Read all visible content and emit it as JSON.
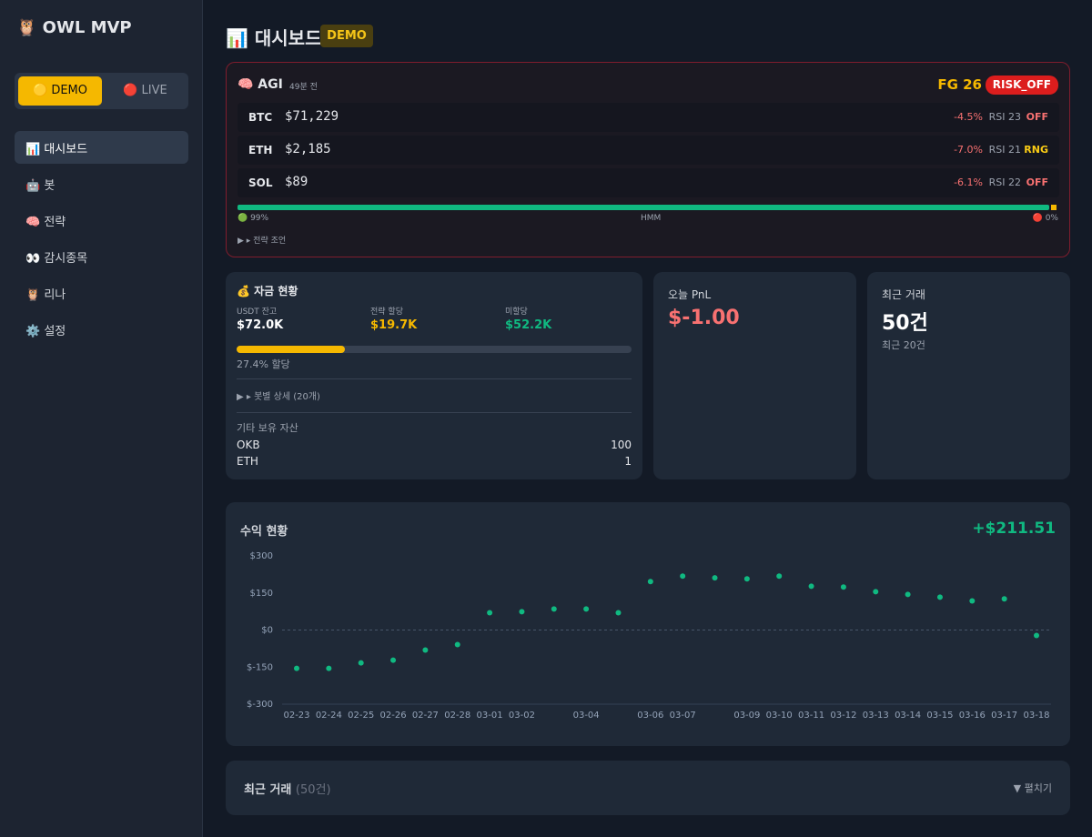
{
  "sidebar": {
    "logo": "🦉 OWL MVP",
    "modes": [
      "🟡 DEMO",
      "🔴 LIVE"
    ],
    "nav": [
      "📊 대시보드",
      "🤖 봇",
      "🧠 전략",
      "👀 감시종목",
      "🦉 리나",
      "⚙️ 설정"
    ]
  },
  "header": {
    "title": "📊 대시보드",
    "badge": "DEMO"
  },
  "agi": {
    "title": "🧠 AGI",
    "updated": "49분 전",
    "fear_greed": "FG 26",
    "regime": "RISK_OFF",
    "assets": [
      {
        "symbol": "BTC",
        "price": "$71,229",
        "change": "-4.5%",
        "rsi": "RSI 23",
        "state": "OFF",
        "state_color": "#f87171"
      },
      {
        "symbol": "ETH",
        "price": "$2,185",
        "change": "-7.0%",
        "rsi": "RSI 21",
        "state": "RNG",
        "state_color": "#facc15"
      },
      {
        "symbol": "SOL",
        "price": "$89",
        "change": "-6.1%",
        "rsi": "RSI 22",
        "state": "OFF",
        "state_color": "#f87171"
      }
    ],
    "hmm": {
      "bull": "🟢 99%",
      "label": "HMM",
      "bear": "🔴 0%"
    },
    "advice": "▸ 전략 조언"
  },
  "funds": {
    "title": "💰 자금 현황",
    "stats": [
      {
        "label": "USDT 잔고",
        "value": "$72.0K"
      },
      {
        "label": "전략 할당",
        "value": "$19.7K"
      },
      {
        "label": "미할당",
        "value": "$52.2K"
      }
    ],
    "allocation": {
      "value": 27.4,
      "label": "27.4% 할당"
    },
    "bot_details": "▸ 봇별 상세 (20개)",
    "other_title": "기타 보유 자산",
    "other_assets": [
      [
        "OKB",
        "100"
      ],
      [
        "ETH",
        "1"
      ]
    ]
  },
  "pnl": {
    "title": "오늘 PnL",
    "value": "$-1.00"
  },
  "trades": {
    "title": "최근 거래",
    "value": "50건",
    "note": "최근 20건"
  },
  "chart_data": {
    "type": "scatter",
    "title": "수익 현황",
    "annotation": "+$211.51",
    "color": "#10b981",
    "categories": [
      "02-23",
      "02-24",
      "02-25",
      "02-26",
      "02-27",
      "02-28",
      "03-01",
      "03-02",
      null,
      "03-04",
      null,
      "03-06",
      "03-07",
      null,
      "03-09",
      "03-10",
      "03-11",
      "03-12",
      "03-13",
      "03-14",
      "03-15",
      "03-16",
      "03-17",
      "03-18"
    ],
    "values": [
      -155,
      -155,
      -133,
      -122,
      -81,
      -59,
      70,
      74,
      85,
      85,
      70,
      196,
      218,
      211,
      207,
      218,
      177,
      174,
      155,
      144,
      133,
      118,
      126,
      -22
    ],
    "ylim": [
      -300,
      300
    ],
    "yticks": [
      {
        "value": -300,
        "label": "$-300"
      },
      {
        "value": -150,
        "label": "$-150"
      },
      {
        "value": 0,
        "label": "$0"
      },
      {
        "value": 150,
        "label": "$150"
      },
      {
        "value": 300,
        "label": "$300"
      }
    ],
    "zero_line": true
  },
  "recent_trades": {
    "title": "최근 거래",
    "count": "(50건)",
    "toggle": "▼ 펼치기"
  }
}
